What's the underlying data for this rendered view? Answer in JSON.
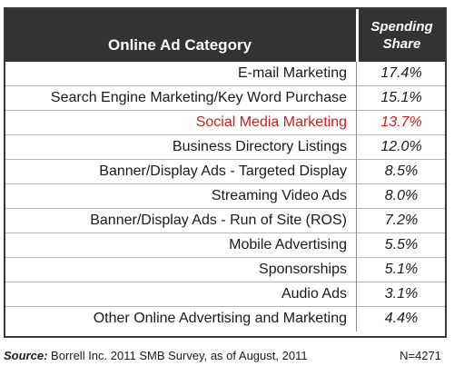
{
  "chart_data": {
    "type": "table",
    "columns": [
      "Online Ad Category",
      "Spending Share"
    ],
    "header": {
      "category": "Online Ad Category",
      "share_line1": "Spending",
      "share_line2": "Share"
    },
    "categories": [
      "E-mail Marketing",
      "Search Engine Marketing/Key Word Purchase",
      "Social Media Marketing",
      "Business Directory Listings",
      "Banner/Display Ads - Targeted Display",
      "Streaming Video Ads",
      "Banner/Display Ads - Run of Site (ROS)",
      "Mobile Advertising",
      "Sponsorships",
      "Audio Ads",
      "Other Online Advertising and Marketing"
    ],
    "values": [
      17.4,
      15.1,
      13.7,
      12.0,
      8.5,
      8.0,
      7.2,
      5.5,
      5.1,
      3.1,
      4.4
    ],
    "value_labels": [
      "17.4%",
      "15.1%",
      "13.7%",
      "12.0%",
      "8.5%",
      "8.0%",
      "7.2%",
      "5.5%",
      "5.1%",
      "3.1%",
      "4.4%"
    ],
    "highlighted_category": "Social Media Marketing",
    "highlight_color": "#cc1f1f",
    "header_color": "#333336"
  },
  "footer": {
    "source_label": "Source:",
    "source_text": " Borrell Inc. 2011 SMB Survey, as of August, 2011",
    "n_label": "N=4271"
  }
}
